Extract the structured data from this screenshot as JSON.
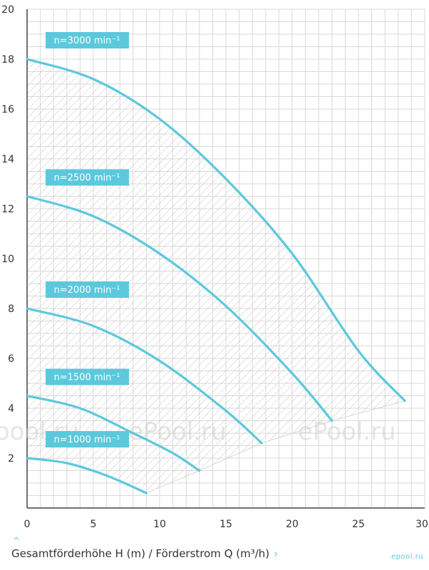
{
  "chart_data": {
    "type": "line",
    "title": "",
    "xlabel": "Gesamtförderhöhe H (m) / Förderstrom Q (m³/h)",
    "ylabel": "",
    "xlim": [
      0,
      30
    ],
    "ylim": [
      0,
      20
    ],
    "x_ticks": [
      0,
      5,
      10,
      15,
      20,
      25,
      30
    ],
    "y_ticks": [
      2,
      4,
      6,
      8,
      10,
      12,
      14,
      16,
      18,
      20
    ],
    "grid": true,
    "series": [
      {
        "name": "n=3000 min⁻¹",
        "x": [
          0,
          5,
          10,
          15,
          20,
          25,
          28.5
        ],
        "y": [
          18,
          17.2,
          15.6,
          13.2,
          10.2,
          6.3,
          4.3
        ]
      },
      {
        "name": "n=2500 min⁻¹",
        "x": [
          0,
          5,
          10,
          15,
          20,
          23
        ],
        "y": [
          12.5,
          11.7,
          10.2,
          8.1,
          5.4,
          3.5
        ]
      },
      {
        "name": "n=2000 min⁻¹",
        "x": [
          0,
          5,
          10,
          15,
          17.7
        ],
        "y": [
          8,
          7.3,
          5.9,
          3.9,
          2.6
        ]
      },
      {
        "name": "n=1500 min⁻¹",
        "x": [
          0,
          4,
          8,
          11,
          13
        ],
        "y": [
          4.5,
          4.0,
          3.0,
          2.2,
          1.5
        ]
      },
      {
        "name": "n=1000 min⁻¹",
        "x": [
          0,
          3,
          6,
          9
        ],
        "y": [
          2,
          1.8,
          1.3,
          0.6
        ]
      }
    ],
    "series_color": "#5cc8dc",
    "label_box_color": "#5cc8dc",
    "hatched_region": true
  },
  "watermark": {
    "text": "ePool.ru",
    "text_left": "pool.ru"
  },
  "caption": {
    "text": "Gesamtförderhöhe H (m) / Förderstrom Q (m³/h)",
    "icon": "chevron-right-icon",
    "up_icon": "chevron-up-icon"
  },
  "brand": {
    "text": "epool.ru"
  }
}
